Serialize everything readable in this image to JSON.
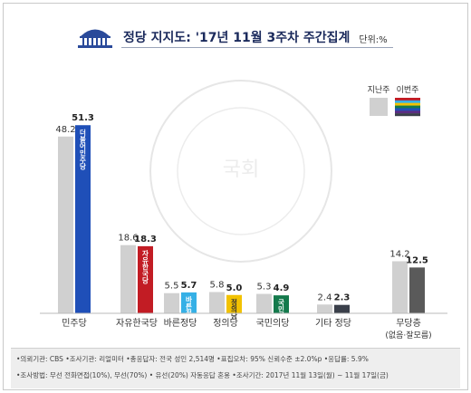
{
  "header": {
    "title": "정당 지지도: '17년 11월 3주차 주간집계",
    "unit": "단위:%"
  },
  "legend": {
    "prev": "지난주",
    "curr": "이번주"
  },
  "watermark": "THE NATIONAL ASSEMBLY OF THE REPUBLIC OF KOREA 국회 대한민국국회",
  "chart_data": {
    "type": "bar",
    "categories": [
      "민주당",
      "자유한국당",
      "바른정당",
      "정의당",
      "국민의당",
      "기타 정당",
      "무당층"
    ],
    "category_sublabels": [
      "",
      "",
      "",
      "",
      "",
      "",
      "(없음·잘모름)"
    ],
    "series": [
      {
        "name": "지난주",
        "values": [
          48.2,
          18.6,
          5.5,
          5.8,
          5.3,
          2.4,
          14.2
        ]
      },
      {
        "name": "이번주",
        "values": [
          51.3,
          18.3,
          5.7,
          5.0,
          4.9,
          2.3,
          12.5
        ]
      }
    ],
    "party_marks": [
      "더불어민주당",
      "자유한국당",
      "바른정당",
      "정의당",
      "국민의당",
      "",
      ""
    ],
    "colors": {
      "prev": "#d0d0d0",
      "curr": [
        "#1f4fb8",
        "#c21c24",
        "#35b0e6",
        "#f2c200",
        "#147a4c",
        "#3a3f4a",
        "#5a5a5a"
      ],
      "title": "#1b2a5c"
    },
    "ylim": [
      0,
      55
    ],
    "grid": false,
    "legend_position": "top-right"
  },
  "footer": {
    "line1": "•의뢰기관: CBS •조사기관: 리얼미터 •총응답자: 전국 성인 2,514명 •표집오차: 95% 신뢰수준 ±2.0%p •응답률: 5.9%",
    "line2": "•조사방법: 무선 전화면접(10%), 무선(70%) • 유선(20%) 자동응답 혼용 •조사기간: 2017년 11월 13일(월) ~ 11월 17일(금)"
  }
}
